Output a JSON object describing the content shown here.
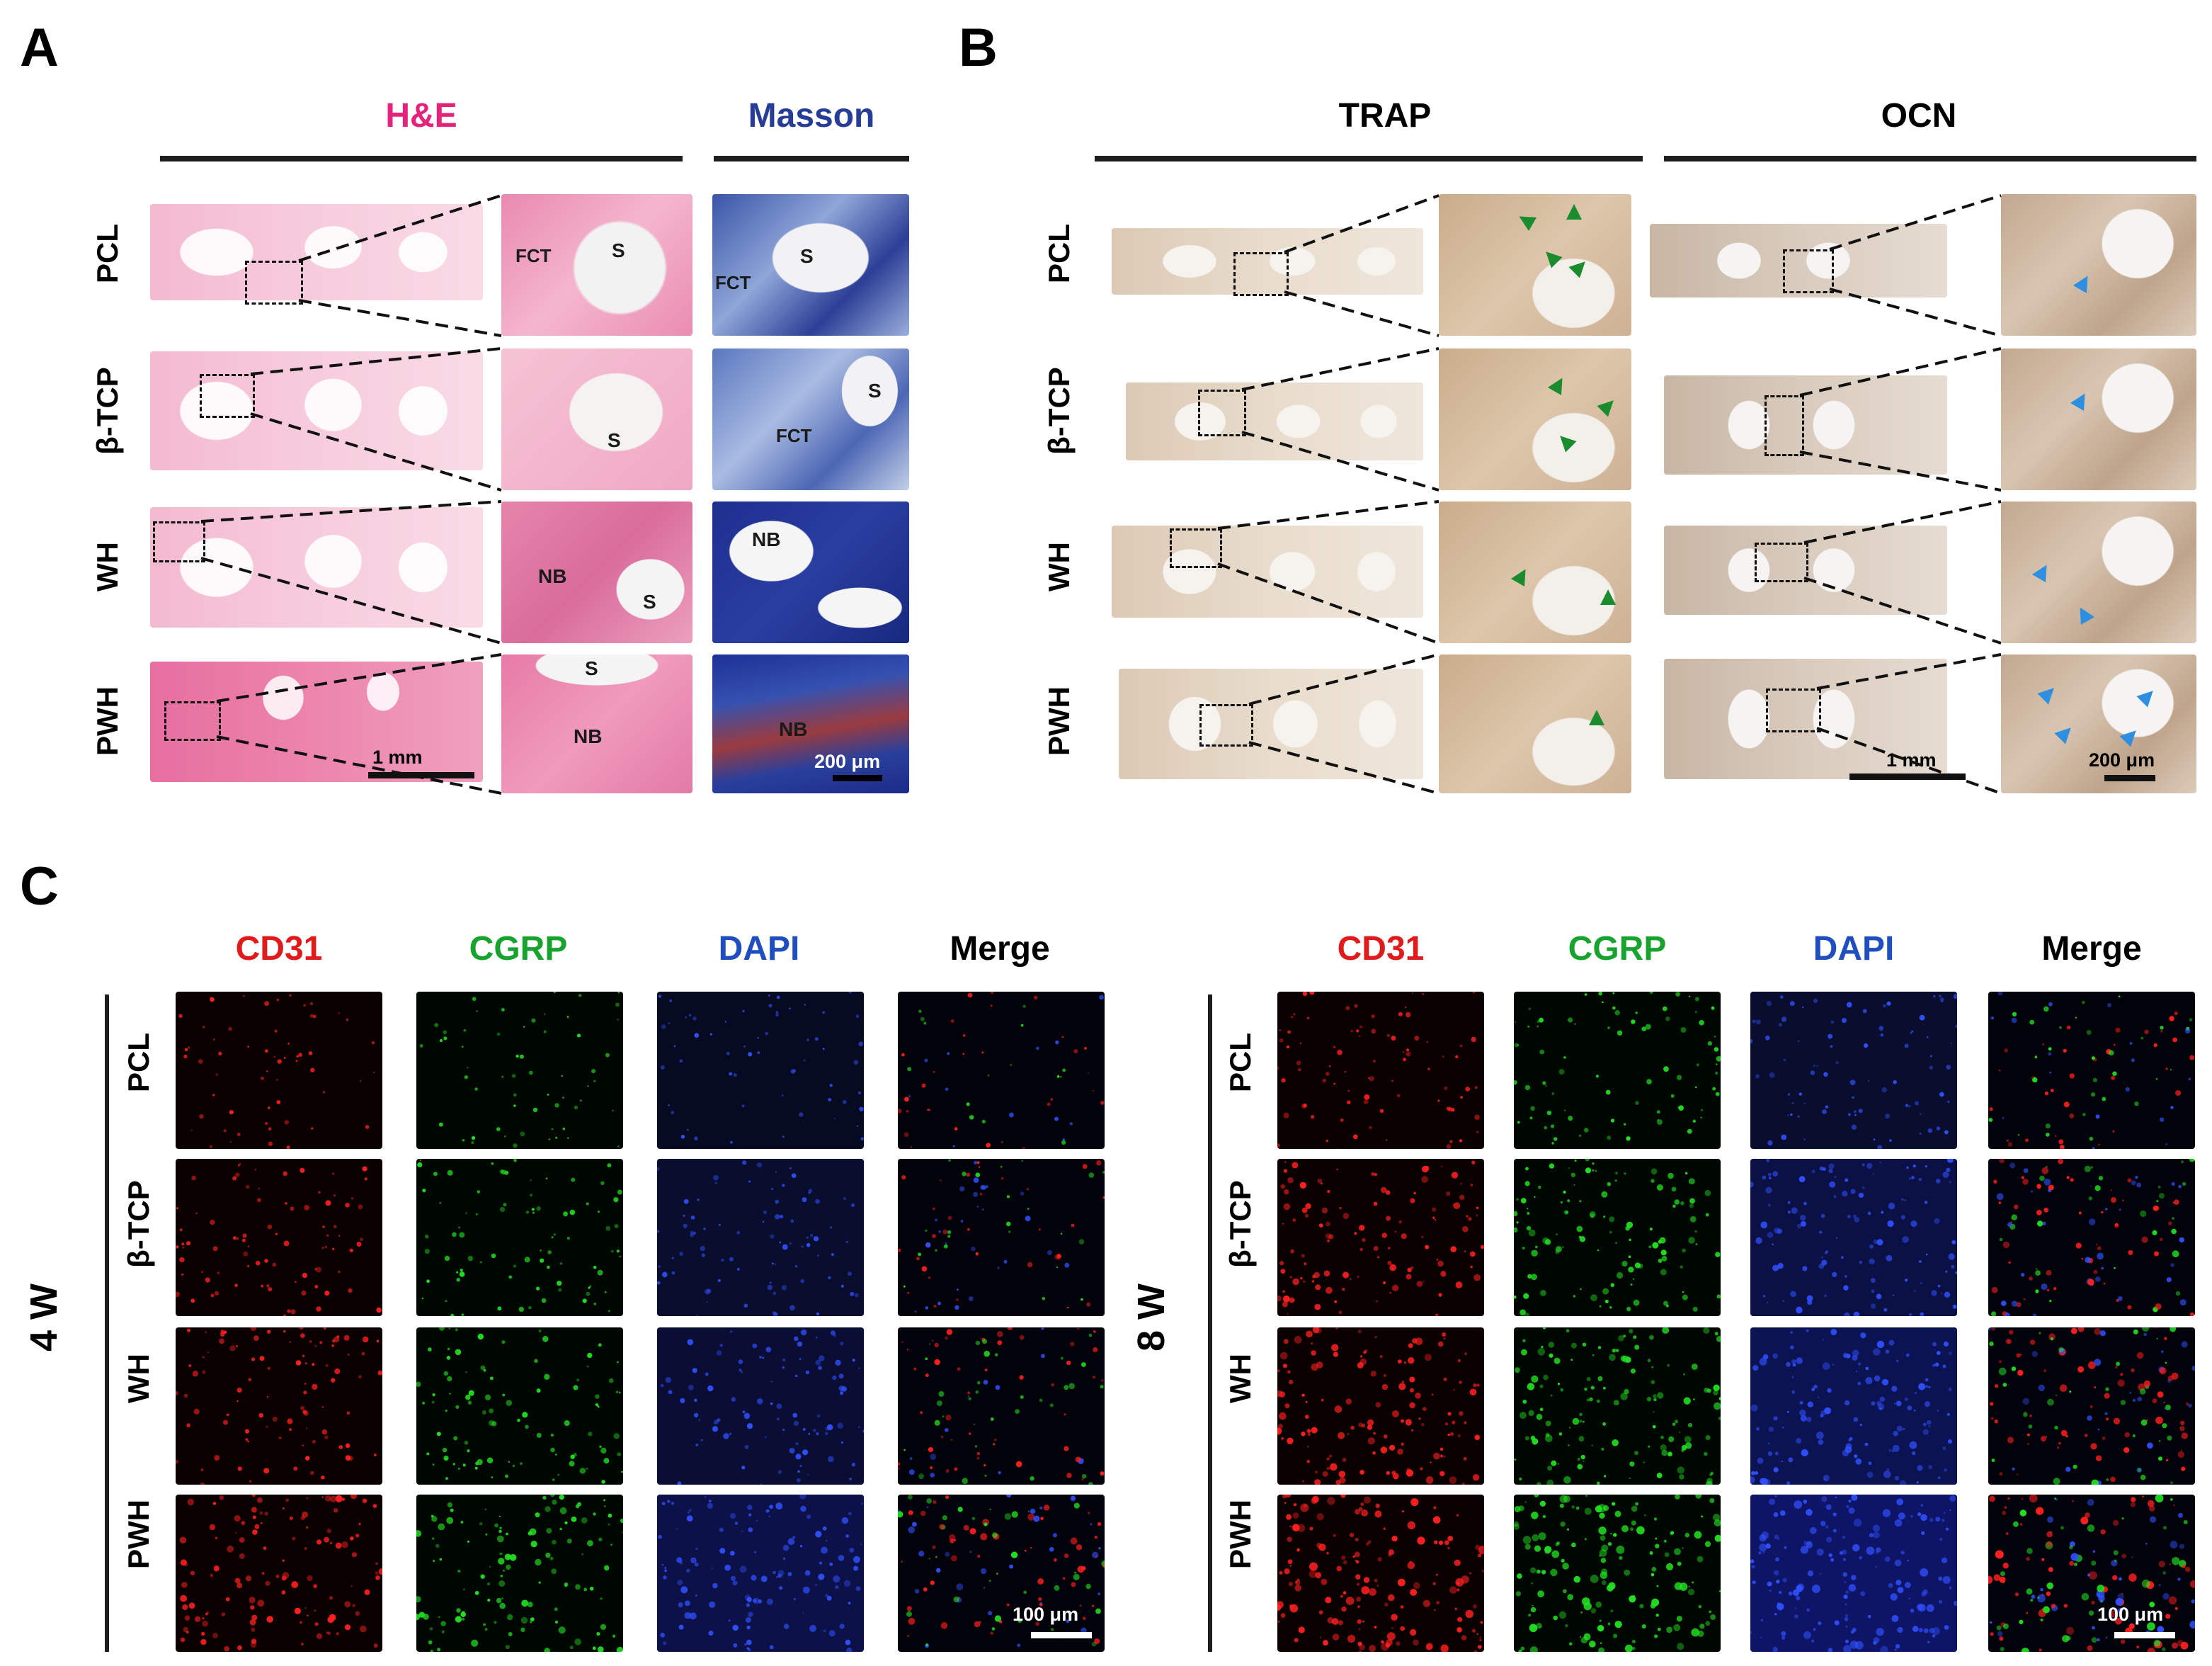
{
  "panel_labels": {
    "a": "A",
    "b": "B",
    "c": "C"
  },
  "panel_a": {
    "stain_he": "H&E",
    "stain_masson": "Masson",
    "he_color": "#e4237d",
    "masson_color": "#263c96",
    "rows": [
      "PCL",
      "β-TCP",
      "WH",
      "PWH"
    ],
    "annotations": {
      "pcl_he": [
        "FCT",
        "S"
      ],
      "pcl_masson": [
        "FCT",
        "S"
      ],
      "tcp_he": "S",
      "tcp_masson": [
        "S",
        "FCT"
      ],
      "wh_he": [
        "NB",
        "S"
      ],
      "wh_masson": "NB",
      "pwh_he": [
        "S",
        "NB"
      ],
      "pwh_masson": "NB"
    },
    "scale_overview": "1 mm",
    "scale_zoom": "200 μm"
  },
  "panel_b": {
    "stain_trap": "TRAP",
    "stain_ocn": "OCN",
    "rows": [
      "PCL",
      "β-TCP",
      "WH",
      "PWH"
    ],
    "scale_overview": "1 mm",
    "scale_zoom": "200 μm",
    "arrow_colors": {
      "trap": "#1a8c2e",
      "ocn": "#2e8fe0"
    }
  },
  "panel_c": {
    "channels": [
      "CD31",
      "CGRP",
      "DAPI",
      "Merge"
    ],
    "channel_colors": [
      "#e01b1b",
      "#17a32e",
      "#1f4fbf",
      "#000000"
    ],
    "rows": [
      "PCL",
      "β-TCP",
      "WH",
      "PWH"
    ],
    "timepoint_left": "4 W",
    "timepoint_right": "8 W",
    "scale": "100 μm"
  }
}
